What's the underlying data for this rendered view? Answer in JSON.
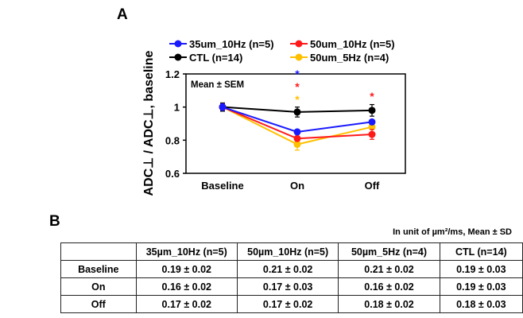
{
  "panel_a_label": "A",
  "panel_b_label": "B",
  "chart_data": {
    "type": "line",
    "ylabel": "ADC⊥ / ADC⊥, baseline",
    "annotation": "Mean ± SEM",
    "categories": [
      "Baseline",
      "On",
      "Off"
    ],
    "ylim": [
      0.6,
      1.2
    ],
    "yticks": [
      "0.6",
      "0.8",
      "1",
      "1.2"
    ],
    "legend_placement": "top",
    "series": [
      {
        "name": "35um_10Hz (n=5)",
        "color": "#1a1aff",
        "values": [
          1.0,
          0.85,
          0.91
        ],
        "err": [
          0.02,
          0.01,
          0.01
        ]
      },
      {
        "name": "50um_10Hz (n=5)",
        "color": "#ff1a1a",
        "values": [
          1.0,
          0.81,
          0.835
        ],
        "err": [
          0.02,
          0.015,
          0.03
        ]
      },
      {
        "name": "CTL (n=14)",
        "color": "#000000",
        "values": [
          1.0,
          0.97,
          0.98
        ],
        "err": [
          0.025,
          0.03,
          0.035
        ]
      },
      {
        "name": "50um_5Hz (n=4)",
        "color": "#ffc000",
        "values": [
          1.0,
          0.775,
          0.88
        ],
        "err": [
          0.02,
          0.035,
          0.015
        ]
      }
    ],
    "significance": [
      {
        "category": "On",
        "marks": [
          {
            "symbol": "*",
            "color": "#1a1aff"
          },
          {
            "symbol": "*",
            "color": "#ff1a1a"
          },
          {
            "symbol": "*",
            "color": "#ffc000"
          }
        ]
      },
      {
        "category": "Off",
        "marks": [
          {
            "symbol": "*",
            "color": "#ff1a1a"
          }
        ]
      }
    ]
  },
  "table": {
    "unit_note": "In unit of µm²/ms, Mean ± SD",
    "headers": [
      "",
      "35µm_10Hz (n=5)",
      "50µm_10Hz (n=5)",
      "50µm_5Hz (n=4)",
      "CTL (n=14)"
    ],
    "rows": [
      [
        "Baseline",
        "0.19 ± 0.02",
        "0.21 ± 0.02",
        "0.21 ± 0.02",
        "0.19 ± 0.03"
      ],
      [
        "On",
        "0.16 ± 0.02",
        "0.17 ± 0.03",
        "0.16 ± 0.02",
        "0.19 ± 0.03"
      ],
      [
        "Off",
        "0.17 ± 0.02",
        "0.17 ± 0.02",
        "0.18 ± 0.02",
        "0.18 ± 0.03"
      ]
    ]
  }
}
